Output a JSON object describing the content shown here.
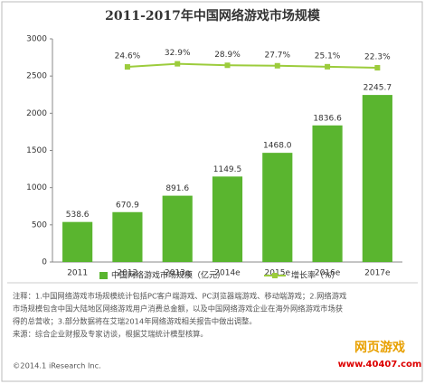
{
  "chart_data": {
    "type": "bar",
    "title": "2011-2017年中国网络游戏市场规模",
    "categories": [
      "2011",
      "2012",
      "2013e",
      "2014e",
      "2015e",
      "2016e",
      "2017e"
    ],
    "series": [
      {
        "name": "中国网络游戏市场规模（亿元）",
        "color": "#5ab52f",
        "type": "bar",
        "values": [
          538.6,
          670.9,
          891.6,
          1149.5,
          1468.0,
          1836.6,
          2245.7
        ],
        "value_labels": [
          "538.6",
          "670.9",
          "891.6",
          "1149.5",
          "1468.0",
          "1836.6",
          "2245.7"
        ]
      },
      {
        "name": "增长率（%）",
        "color": "#9ccc3c",
        "type": "line",
        "axis": "y2",
        "values": [
          null,
          24.6,
          32.9,
          28.9,
          27.7,
          25.1,
          22.3
        ],
        "value_labels": [
          null,
          "24.6%",
          "32.9%",
          "28.9%",
          "27.7%",
          "25.1%",
          "22.3%"
        ]
      }
    ],
    "ylim": [
      0,
      3000
    ],
    "yticks": [
      0,
      500,
      1000,
      1500,
      2000,
      2500,
      3000
    ],
    "y2lim": [
      -500,
      100
    ],
    "notes": [
      "注释：1.中国网络游戏市场规模统计包括PC客户端游戏、PC浏览器端游戏、移动端游戏；2.网络游戏",
      "市场规模包含中国大陆地区网络游戏用户消费总金额，以及中国网络游戏企业在海外网络游戏市场获",
      "得的总营收；3.部分数据将在艾瑞2014年网络游戏相关报告中做出调整。",
      "来源：综合企业财报及专家访谈，根据艾瑞统计模型核算。"
    ],
    "copyright": "©2014.1 iResearch Inc.",
    "watermark": [
      "网页游戏",
      "www.40407.com"
    ]
  }
}
